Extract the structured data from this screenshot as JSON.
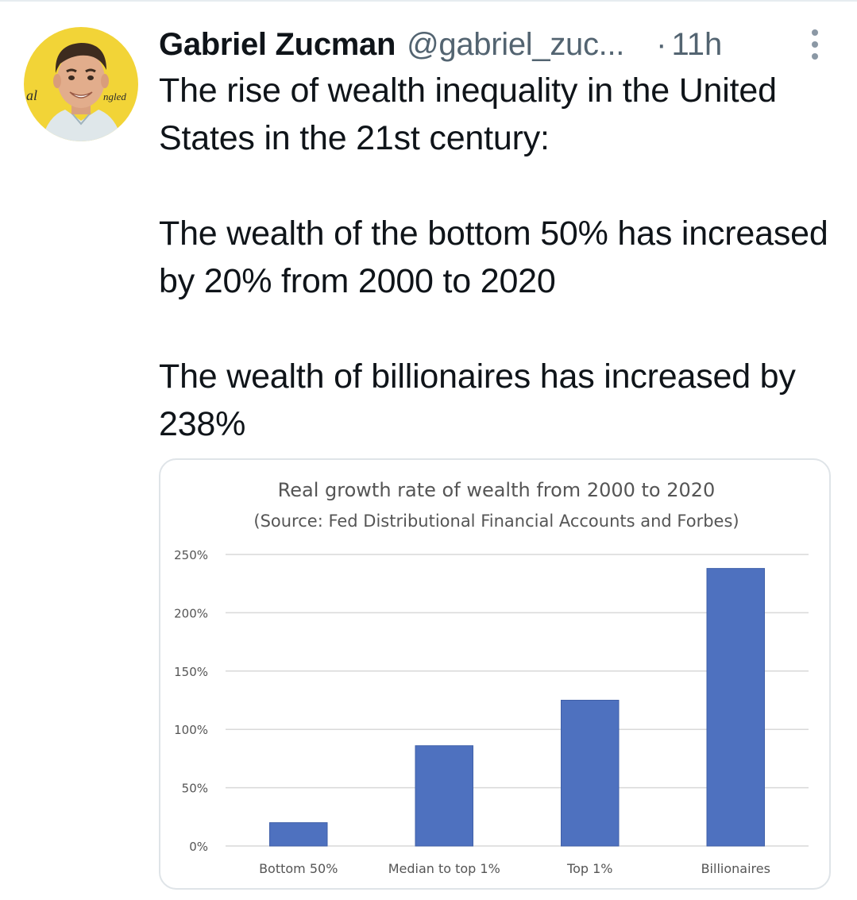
{
  "tweet": {
    "author_name": "Gabriel Zucman",
    "author_handle": "@gabriel_zuc...",
    "separator": "·",
    "timestamp": "11h",
    "text_paragraphs": [
      "The rise of wealth inequality in the United States in the 21st century:",
      "The wealth of the bottom 50% has increased by 20% from 2000 to 2020",
      "The wealth of billionaires has increased by 238%"
    ],
    "avatar_banner_text_left": "al",
    "avatar_banner_text_right": "ngled",
    "icons": {
      "avatar": "profile-photo",
      "more": "vertical-ellipsis-icon"
    }
  },
  "chart_data": {
    "type": "bar",
    "title": "Real growth rate of wealth from 2000 to 2020",
    "subtitle": "(Source: Fed Distributional Financial Accounts and Forbes)",
    "categories": [
      "Bottom 50%",
      "Median to top 1%",
      "Top 1%",
      "Billionaires"
    ],
    "values": [
      20,
      86,
      125,
      238
    ],
    "ylim": [
      0,
      250
    ],
    "yticks": [
      0,
      50,
      100,
      150,
      200,
      250
    ],
    "ytick_labels": [
      "0%",
      "50%",
      "100%",
      "150%",
      "200%",
      "250%"
    ],
    "xlabel": "",
    "ylabel": "",
    "grid": true,
    "bar_color": "#4e71bf",
    "grid_color": "#d9d9d9"
  },
  "colors": {
    "text_primary": "#0f1419",
    "text_secondary": "#536471",
    "avatar_bg": "#f4d63a"
  }
}
